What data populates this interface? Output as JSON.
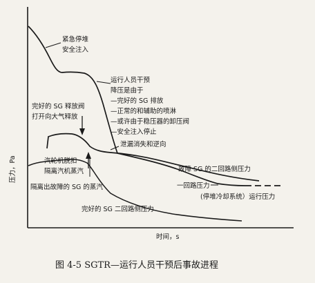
{
  "chart_data": {
    "type": "line",
    "xlabel": "时间，s",
    "ylabel": "压力，Pa",
    "grid": false,
    "caption": "图 4-5   SGTR—运行人员干预后事故进程",
    "colors": {
      "ink": "#1a1a1a",
      "paper": "#f4f2ec"
    },
    "series": [
      {
        "name": "一回路压力",
        "role": "primary-pressure"
      },
      {
        "name": "故障 SG 的二回路侧压力",
        "role": "faulted-sg-pressure"
      },
      {
        "name": "完好的 SG 二回路侧压力",
        "role": "intact-sg-pressure"
      },
      {
        "name": "(停堆冷却系统）运行压力",
        "role": "shutdown-cooling-level"
      }
    ],
    "annotations": {
      "scram_1": "紧急停堆",
      "scram_2": "安全注入",
      "op_1": "运行人员干预",
      "op_2": "降压是由于",
      "op_3": "—完好的 SG 排放",
      "op_4": "—正常的和辅助的喷淋",
      "op_5": "—或许由于稳压器的卸压阀",
      "op_6": "—安全注入停止",
      "relief_1": "完好的 SG 释放阀",
      "relief_2": "打开向大气释放",
      "leak": "泄漏消失和逆向",
      "faulted": "故障 SG 的二回路侧压力",
      "turbine_1": "汽轮机脱扣",
      "turbine_2": "隔离汽机蒸汽",
      "isolate": "隔离出故障的 SG 的蒸汽",
      "primary": "一回路压力",
      "cooling": "(停堆冷却系统）运行压力",
      "intact": "完好的 SG 二回路侧压力"
    }
  }
}
